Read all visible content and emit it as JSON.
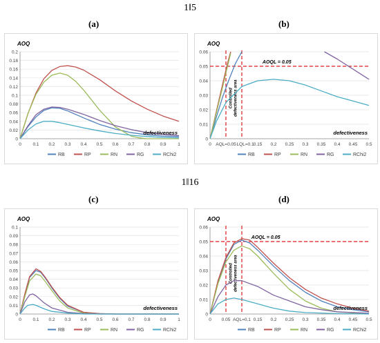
{
  "header_top": "1‖5",
  "header_bottom": "1‖16",
  "panel_labels": [
    "(a)",
    "(b)",
    "(c)",
    "(d)"
  ],
  "colors": {
    "RB": "#4f81bd",
    "RP": "#c0504d",
    "RN": "#9bbb59",
    "RG": "#8064a2",
    "RChi2": "#4bacc6",
    "ref": "#e0191c"
  },
  "chart_data": [
    {
      "panel": "(a)",
      "type": "line",
      "ylabel": "AOQ",
      "xlabel": "defectiveness",
      "xlim": [
        0,
        1
      ],
      "ylim": [
        0,
        0.2
      ],
      "xticks": [
        "0",
        "0.1",
        "0.2",
        "0.3",
        "0.4",
        "0.5",
        "0.6",
        "0.7",
        "0.8",
        "0.9",
        "1"
      ],
      "yticks": [
        "0",
        "0.02",
        "0.04",
        "0.06",
        "0.08",
        "0.1",
        "0.12",
        "0.14",
        "0.16",
        "0.18",
        "0.2"
      ],
      "legend": [
        "RB",
        "RP",
        "RN",
        "RG",
        "RChi2"
      ],
      "series": [
        {
          "name": "RB",
          "x": [
            0,
            0.05,
            0.1,
            0.15,
            0.2,
            0.25,
            0.3,
            0.4,
            0.5,
            0.6,
            0.7,
            0.8,
            0.9,
            1
          ],
          "y": [
            0,
            0.028,
            0.05,
            0.065,
            0.071,
            0.07,
            0.064,
            0.048,
            0.033,
            0.022,
            0.014,
            0.009,
            0.006,
            0.005
          ]
        },
        {
          "name": "RP",
          "x": [
            0,
            0.05,
            0.1,
            0.15,
            0.2,
            0.25,
            0.3,
            0.35,
            0.4,
            0.5,
            0.6,
            0.7,
            0.8,
            0.9,
            1
          ],
          "y": [
            0,
            0.058,
            0.105,
            0.138,
            0.157,
            0.166,
            0.168,
            0.165,
            0.158,
            0.136,
            0.11,
            0.087,
            0.068,
            0.052,
            0.04
          ]
        },
        {
          "name": "RN",
          "x": [
            0,
            0.05,
            0.1,
            0.15,
            0.2,
            0.25,
            0.3,
            0.35,
            0.4,
            0.5,
            0.6,
            0.7,
            0.75,
            0.8,
            1
          ],
          "y": [
            0,
            0.058,
            0.102,
            0.13,
            0.146,
            0.151,
            0.146,
            0.132,
            0.112,
            0.066,
            0.027,
            0.006,
            0.002,
            0,
            0
          ]
        },
        {
          "name": "RG",
          "x": [
            0,
            0.05,
            0.1,
            0.15,
            0.2,
            0.25,
            0.3,
            0.4,
            0.5,
            0.6,
            0.7,
            0.8,
            0.9,
            1
          ],
          "y": [
            0,
            0.03,
            0.055,
            0.068,
            0.073,
            0.072,
            0.068,
            0.056,
            0.042,
            0.03,
            0.021,
            0.014,
            0.01,
            0.007
          ]
        },
        {
          "name": "RChi2",
          "x": [
            0,
            0.05,
            0.1,
            0.15,
            0.2,
            0.25,
            0.3,
            0.4,
            0.5,
            0.6,
            0.7,
            0.8,
            0.9,
            1
          ],
          "y": [
            0,
            0.02,
            0.034,
            0.04,
            0.04,
            0.037,
            0.033,
            0.025,
            0.018,
            0.012,
            0.008,
            0.005,
            0.003,
            0.002
          ]
        }
      ]
    },
    {
      "panel": "(b)",
      "type": "line",
      "ylabel": "AOQ",
      "xlabel": "defectiveness",
      "xlim": [
        0,
        0.5
      ],
      "ylim": [
        0,
        0.06
      ],
      "xticks": [
        "0",
        "0.05",
        "0.1",
        "0.15",
        "0.2",
        "0.25",
        "0.3",
        "0.35",
        "0.4",
        "0.45",
        "0.5"
      ],
      "yticks": [
        "0",
        "0.01",
        "0.02",
        "0.03",
        "0.04",
        "0.05",
        "0.06"
      ],
      "legend": [
        "RB",
        "RP",
        "RN",
        "RG",
        "RChi2"
      ],
      "annotations": {
        "aoql_text": "AOQL = 0.05",
        "region_text": [
          "Controlled",
          "defectiveness area"
        ],
        "aql_tick": "AQL=0.05",
        "lql_tick": "LQL=0.1"
      },
      "aoql": 0.05,
      "vlines": [
        0.05,
        0.1
      ],
      "series": [
        {
          "name": "RB",
          "x": [
            0,
            0.02,
            0.04,
            0.06,
            0.08,
            0.1
          ],
          "y": [
            0,
            0.015,
            0.029,
            0.041,
            0.052,
            0.06
          ]
        },
        {
          "name": "RP",
          "x": [
            0,
            0.02,
            0.04,
            0.055,
            0.065
          ],
          "y": [
            0,
            0.019,
            0.038,
            0.052,
            0.06
          ]
        },
        {
          "name": "RN",
          "x": [
            0,
            0.02,
            0.04,
            0.055,
            0.065
          ],
          "y": [
            0,
            0.018,
            0.036,
            0.05,
            0.059
          ]
        },
        {
          "name": "RG",
          "x": [
            0.36,
            0.4,
            0.45,
            0.5
          ],
          "y": [
            0.06,
            0.055,
            0.048,
            0.041
          ]
        },
        {
          "name": "RChi2",
          "x": [
            0,
            0.02,
            0.05,
            0.1,
            0.15,
            0.2,
            0.25,
            0.3,
            0.35,
            0.4,
            0.45,
            0.5
          ],
          "y": [
            0,
            0.012,
            0.025,
            0.036,
            0.04,
            0.041,
            0.04,
            0.037,
            0.033,
            0.029,
            0.026,
            0.023
          ]
        }
      ]
    },
    {
      "panel": "(c)",
      "type": "line",
      "ylabel": "AOQ",
      "xlabel": "defectiveness",
      "xlim": [
        0,
        1
      ],
      "ylim": [
        0,
        0.1
      ],
      "xticks": [
        "0",
        "0.1",
        "0.2",
        "0.3",
        "0.4",
        "0.5",
        "0.6",
        "0.7",
        "0.8",
        "0.9",
        "1"
      ],
      "yticks": [
        "0",
        "0.01",
        "0.02",
        "0.03",
        "0.04",
        "0.05",
        "0.06",
        "0.07",
        "0.08",
        "0.09",
        "0.1"
      ],
      "legend": [
        "RB",
        "RP",
        "RN",
        "RG",
        "RChi2"
      ],
      "series": [
        {
          "name": "RB",
          "x": [
            0,
            0.03,
            0.06,
            0.1,
            0.13,
            0.16,
            0.2,
            0.25,
            0.3,
            0.4,
            0.5,
            0.6,
            1
          ],
          "y": [
            0,
            0.022,
            0.042,
            0.05,
            0.048,
            0.041,
            0.03,
            0.018,
            0.009,
            0.002,
            0.0005,
            0,
            0
          ]
        },
        {
          "name": "RP",
          "x": [
            0,
            0.03,
            0.06,
            0.1,
            0.13,
            0.16,
            0.2,
            0.25,
            0.3,
            0.4,
            0.5,
            0.6,
            1
          ],
          "y": [
            0,
            0.023,
            0.043,
            0.052,
            0.049,
            0.042,
            0.031,
            0.019,
            0.01,
            0.002,
            0.0005,
            0,
            0
          ]
        },
        {
          "name": "RN",
          "x": [
            0,
            0.03,
            0.06,
            0.1,
            0.13,
            0.16,
            0.2,
            0.25,
            0.3,
            0.4,
            0.5,
            1
          ],
          "y": [
            0,
            0.02,
            0.038,
            0.046,
            0.044,
            0.037,
            0.027,
            0.015,
            0.007,
            0.001,
            0,
            0
          ]
        },
        {
          "name": "RG",
          "x": [
            0,
            0.03,
            0.06,
            0.08,
            0.1,
            0.15,
            0.2,
            0.3,
            0.4,
            0.5,
            1
          ],
          "y": [
            0,
            0.014,
            0.022,
            0.023,
            0.021,
            0.013,
            0.007,
            0.002,
            0.0005,
            0,
            0
          ]
        },
        {
          "name": "RChi2",
          "x": [
            0,
            0.03,
            0.05,
            0.08,
            0.1,
            0.15,
            0.2,
            0.3,
            0.4,
            1
          ],
          "y": [
            0,
            0.007,
            0.01,
            0.011,
            0.01,
            0.006,
            0.003,
            0.001,
            0,
            0
          ]
        }
      ]
    },
    {
      "panel": "(d)",
      "type": "line",
      "ylabel": "AOQ",
      "xlabel": "defectiveness",
      "xlim": [
        0,
        0.5
      ],
      "ylim": [
        0,
        0.06
      ],
      "xticks": [
        "0",
        "0.05",
        "0.1",
        "0.15",
        "0.2",
        "0.25",
        "0.3",
        "0.35",
        "0.4",
        "0.45",
        "0.5"
      ],
      "yticks": [
        "0",
        "0.01",
        "0.02",
        "0.03",
        "0.04",
        "0.05",
        "0.06"
      ],
      "legend": [
        "RB",
        "RP",
        "RN",
        "RG",
        "RChi2"
      ],
      "annotations": {
        "aoql_text": "AOQL = 0.05",
        "region_text": [
          "Controlled",
          "defectiveness area"
        ],
        "aql_tick": "AQL=0.1"
      },
      "aoql": 0.05,
      "vlines": [
        0.05,
        0.1
      ],
      "series": [
        {
          "name": "RB",
          "x": [
            0,
            0.025,
            0.05,
            0.075,
            0.1,
            0.125,
            0.15,
            0.2,
            0.25,
            0.3,
            0.35,
            0.4,
            0.45,
            0.5
          ],
          "y": [
            0,
            0.022,
            0.038,
            0.048,
            0.051,
            0.049,
            0.044,
            0.033,
            0.023,
            0.015,
            0.009,
            0.005,
            0.003,
            0.0015
          ]
        },
        {
          "name": "RP",
          "x": [
            0,
            0.025,
            0.05,
            0.075,
            0.1,
            0.125,
            0.15,
            0.2,
            0.25,
            0.3,
            0.35,
            0.4,
            0.45,
            0.5
          ],
          "y": [
            0,
            0.023,
            0.039,
            0.049,
            0.052,
            0.051,
            0.046,
            0.035,
            0.025,
            0.017,
            0.011,
            0.007,
            0.004,
            0.002
          ]
        },
        {
          "name": "RN",
          "x": [
            0,
            0.025,
            0.05,
            0.075,
            0.1,
            0.125,
            0.15,
            0.2,
            0.25,
            0.3,
            0.35,
            0.4,
            0.5
          ],
          "y": [
            0,
            0.021,
            0.036,
            0.044,
            0.047,
            0.045,
            0.04,
            0.028,
            0.017,
            0.009,
            0.004,
            0.0015,
            0
          ]
        },
        {
          "name": "RG",
          "x": [
            0,
            0.025,
            0.05,
            0.075,
            0.1,
            0.15,
            0.2,
            0.25,
            0.3,
            0.35,
            0.4,
            0.5
          ],
          "y": [
            0,
            0.012,
            0.02,
            0.023,
            0.023,
            0.019,
            0.013,
            0.009,
            0.005,
            0.003,
            0.0015,
            0.0005
          ]
        },
        {
          "name": "RChi2",
          "x": [
            0,
            0.025,
            0.05,
            0.075,
            0.1,
            0.15,
            0.2,
            0.25,
            0.3,
            0.4,
            0.5
          ],
          "y": [
            0,
            0.007,
            0.01,
            0.011,
            0.01,
            0.007,
            0.004,
            0.002,
            0.001,
            0.0003,
            0
          ]
        }
      ]
    }
  ]
}
